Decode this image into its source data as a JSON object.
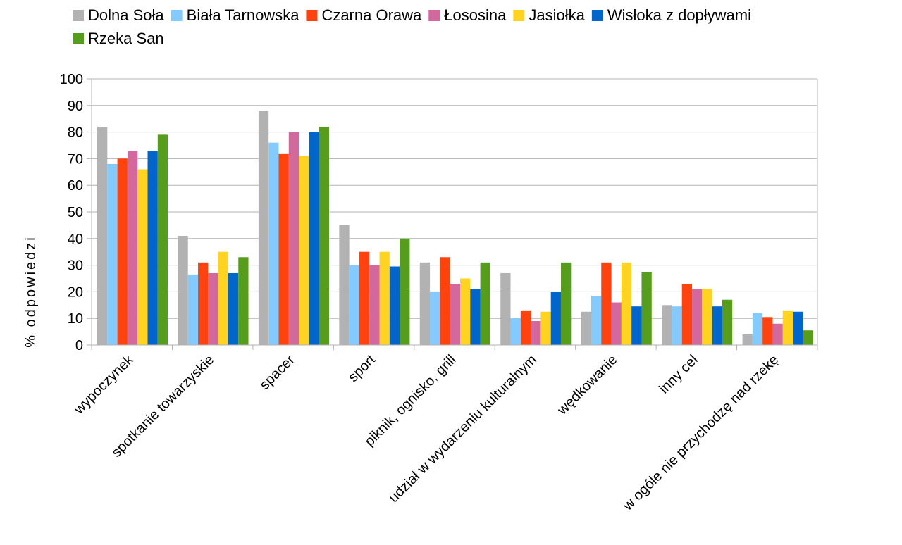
{
  "chart_data": {
    "type": "bar",
    "title": "",
    "xlabel": "",
    "ylabel": "% odpowiedzi",
    "ylim": [
      0,
      100
    ],
    "yticks": [
      0,
      10,
      20,
      30,
      40,
      50,
      60,
      70,
      80,
      90,
      100
    ],
    "grid": true,
    "legend_position": "top",
    "categories": [
      "wypoczynek",
      "spotkanie towarzyskie",
      "spacer",
      "sport",
      "piknik, ognisko, grill",
      "udział w wydarzeniu kulturalnym",
      "wędkowanie",
      "inny cel",
      "w ogóle nie przychodzę nad rzekę"
    ],
    "series": [
      {
        "name": "Dolna Soła",
        "color": "#b2b2b2",
        "values": [
          82,
          41,
          88,
          45,
          31,
          27,
          12.5,
          15,
          4
        ]
      },
      {
        "name": "Biała Tarnowska",
        "color": "#83caff",
        "values": [
          68,
          26.5,
          76,
          30,
          20,
          10,
          18.5,
          14.5,
          12
        ]
      },
      {
        "name": "Czarna Orawa",
        "color": "#ff420e",
        "values": [
          70,
          31,
          72,
          35,
          33,
          13,
          31,
          23,
          10.5
        ]
      },
      {
        "name": "Łososina",
        "color": "#d2689e",
        "values": [
          73,
          27,
          80,
          30,
          23,
          9,
          16,
          21,
          8
        ]
      },
      {
        "name": "Jasiołka",
        "color": "#ffd320",
        "values": [
          66,
          35,
          71,
          35,
          25,
          12.5,
          31,
          21,
          13
        ]
      },
      {
        "name": "Wisłoka z dopływami",
        "color": "#0066cc",
        "values": [
          73,
          27,
          80,
          29.5,
          21,
          20,
          14.5,
          14.5,
          12.5
        ]
      },
      {
        "name": "Rzeka San",
        "color": "#579d1c",
        "values": [
          79,
          33,
          82,
          40,
          31,
          31,
          27.5,
          17,
          5.5
        ]
      }
    ]
  }
}
